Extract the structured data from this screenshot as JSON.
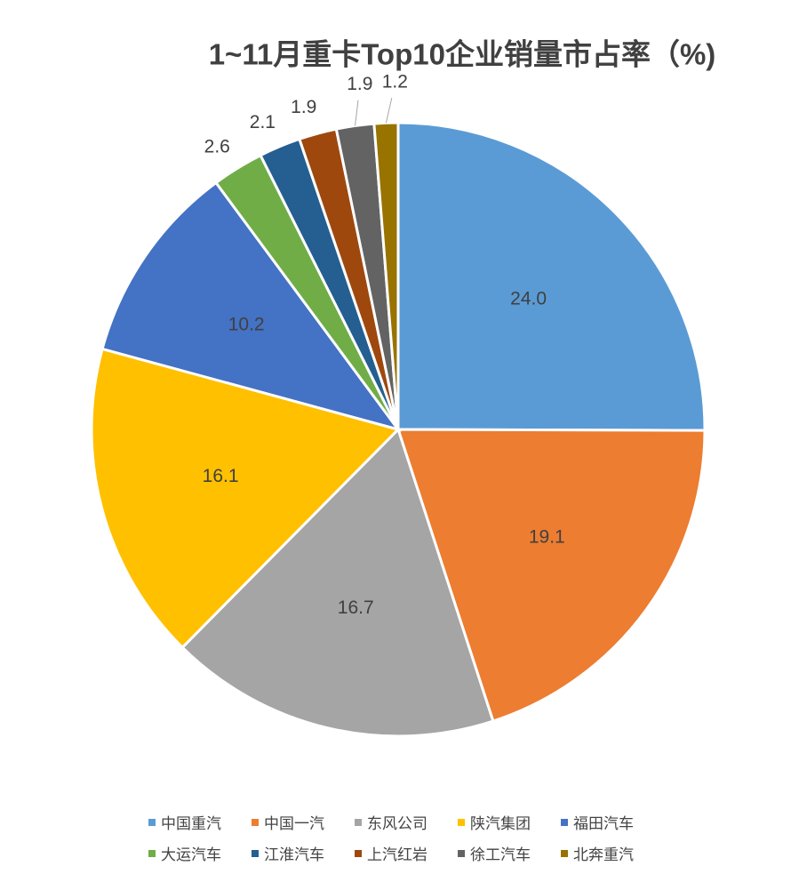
{
  "chart_data": {
    "type": "pie",
    "title": "1~11月重卡Top10企业销量市占率（%)",
    "categories": [
      "中国重汽",
      "中国一汽",
      "东风公司",
      "陕汽集团",
      "福田汽车",
      "大运汽车",
      "江淮汽车",
      "上汽红岩",
      "徐工汽车",
      "北奔重汽"
    ],
    "values": [
      24.0,
      19.1,
      16.7,
      16.1,
      10.2,
      2.6,
      2.1,
      1.9,
      1.9,
      1.2
    ],
    "value_labels": [
      "24.0",
      "19.1",
      "16.7",
      "16.1",
      "10.2",
      "2.6",
      "2.1",
      "1.9",
      "1.9",
      "1.2"
    ],
    "colors": [
      "#5b9bd5",
      "#ed7d31",
      "#a5a5a5",
      "#ffc000",
      "#4472c4",
      "#70ad47",
      "#255e91",
      "#9e480e",
      "#636363",
      "#997300"
    ],
    "legend": "bottom"
  }
}
